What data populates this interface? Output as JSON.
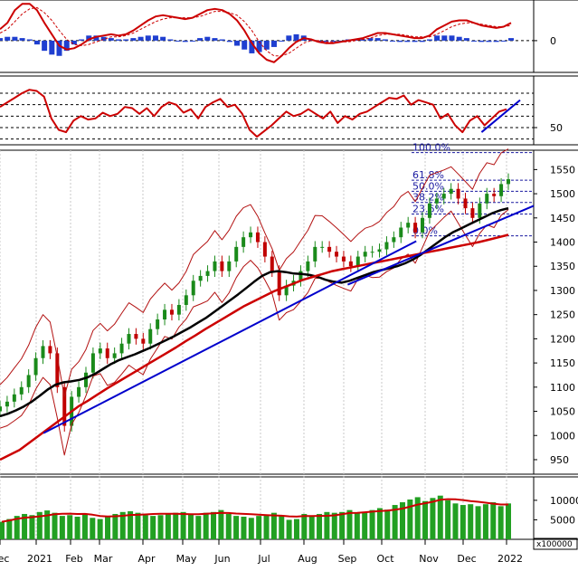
{
  "chart_data": [
    {
      "panel": "macd",
      "type": "line",
      "y_ticks": [
        0
      ],
      "y_range": [
        -25,
        32
      ],
      "grid": "dashed",
      "series": [
        {
          "color": "#cc0000",
          "values": [
            9,
            14,
            24,
            29,
            29,
            24,
            14,
            5,
            -4,
            -7,
            -6,
            -3,
            1,
            3,
            4,
            5,
            4,
            5,
            8,
            12,
            16,
            19,
            20,
            19,
            18,
            17,
            18,
            21,
            24,
            25,
            24,
            21,
            16,
            8,
            -2,
            -10,
            -15,
            -17,
            -12,
            -6,
            -1,
            2,
            1,
            -1,
            -2,
            -2,
            -1,
            0,
            1,
            2,
            4,
            6,
            6,
            5,
            4,
            3,
            2,
            2,
            4,
            9,
            12,
            15,
            16,
            16,
            14,
            12,
            11,
            10,
            11,
            14
          ]
        },
        {
          "color": "#cc0000",
          "dashed": true,
          "values": [
            6,
            9,
            15,
            21,
            25,
            26,
            22,
            16,
            8,
            1,
            -3,
            -4,
            -3,
            -1,
            1,
            3,
            3,
            4,
            6,
            9,
            12,
            15,
            17,
            18,
            18,
            18,
            18,
            19,
            21,
            23,
            23,
            22,
            20,
            15,
            8,
            -1,
            -8,
            -12,
            -12,
            -10,
            -6,
            -2,
            0,
            0,
            -1,
            -1,
            -1,
            -1,
            0,
            1,
            2,
            4,
            5,
            5,
            5,
            4,
            3,
            3,
            3,
            5,
            8,
            11,
            13,
            14,
            14,
            13,
            12,
            11,
            11,
            12
          ]
        }
      ],
      "histogram": [
        2,
        3,
        3,
        2,
        1,
        -3,
        -8,
        -11,
        -12,
        -8,
        -3,
        1,
        4,
        4,
        3,
        2,
        1,
        1,
        2,
        3,
        4,
        4,
        3,
        1,
        0,
        -1,
        0,
        2,
        3,
        2,
        1,
        -1,
        -4,
        -7,
        -10,
        -9,
        -7,
        -5,
        0,
        4,
        5,
        4,
        1,
        -1,
        -1,
        -1,
        0,
        1,
        1,
        1,
        2,
        2,
        1,
        0,
        -1,
        -1,
        -1,
        -1,
        1,
        4,
        4,
        4,
        3,
        2,
        0,
        -1,
        -1,
        -1,
        0,
        2
      ]
    },
    {
      "panel": "rsi",
      "type": "line",
      "y_ticks": [
        50
      ],
      "y_range": [
        35,
        95
      ],
      "reference_lines": [
        40,
        50,
        60,
        70,
        80
      ],
      "series": [
        {
          "color": "#cc0000",
          "values": [
            68,
            72,
            76,
            80,
            83,
            82,
            77,
            58,
            48,
            46,
            56,
            60,
            57,
            58,
            63,
            60,
            62,
            68,
            67,
            62,
            67,
            60,
            68,
            72,
            70,
            63,
            66,
            58,
            68,
            72,
            75,
            68,
            70,
            62,
            48,
            42,
            47,
            52,
            58,
            64,
            60,
            62,
            66,
            62,
            58,
            64,
            54,
            60,
            57,
            62,
            64,
            68,
            72,
            76,
            75,
            78,
            70,
            74,
            72,
            70,
            58,
            62,
            52,
            46,
            56,
            60,
            52,
            58,
            64,
            66
          ]
        },
        {
          "color": "#0000cc",
          "segment": {
            "x": [
              0.86,
              1.0
            ],
            "y": [
              46,
              74
            ]
          }
        }
      ]
    },
    {
      "panel": "price",
      "type": "candlestick",
      "y_ticks": [
        950,
        1000,
        1050,
        1100,
        1150,
        1200,
        1250,
        1300,
        1350,
        1400,
        1450,
        1500,
        1550
      ],
      "y_range": [
        920,
        1590
      ],
      "x_labels": [
        "ec",
        "2021",
        "Feb",
        "Mar",
        "Apr",
        "May",
        "Jun",
        "Jul",
        "Aug",
        "Sep",
        "Oct",
        "Nov",
        "Dec",
        "2022"
      ],
      "fib_levels": [
        {
          "label": "0.0%",
          "value": 1413
        },
        {
          "label": "23.6%",
          "value": 1458
        },
        {
          "label": "38.2%",
          "value": 1482
        },
        {
          "label": "50.0%",
          "value": 1505
        },
        {
          "label": "61.8%",
          "value": 1528
        },
        {
          "label": "100.0%",
          "value": 1585
        }
      ],
      "close": [
        1060,
        1070,
        1085,
        1100,
        1125,
        1160,
        1185,
        1170,
        1100,
        1020,
        1080,
        1100,
        1130,
        1170,
        1180,
        1160,
        1170,
        1190,
        1210,
        1200,
        1190,
        1220,
        1240,
        1260,
        1250,
        1270,
        1290,
        1320,
        1330,
        1340,
        1360,
        1340,
        1360,
        1390,
        1410,
        1420,
        1400,
        1370,
        1340,
        1290,
        1310,
        1320,
        1340,
        1360,
        1390,
        1390,
        1380,
        1370,
        1360,
        1350,
        1370,
        1380,
        1380,
        1385,
        1400,
        1410,
        1430,
        1440,
        1420,
        1450,
        1480,
        1490,
        1500,
        1510,
        1490,
        1470,
        1450,
        1480,
        1500,
        1495,
        1520,
        1530
      ],
      "overlays": [
        {
          "name": "",
          "color": "#000000",
          "values": [
            1040,
            1045,
            1052,
            1060,
            1070,
            1082,
            1095,
            1105,
            1110,
            1112,
            1115,
            1120,
            1128,
            1138,
            1148,
            1156,
            1162,
            1168,
            1175,
            1182,
            1190,
            1198,
            1206,
            1215,
            1224,
            1234,
            1244,
            1256,
            1268,
            1280,
            1292,
            1305,
            1318,
            1330,
            1338,
            1340,
            1338,
            1335,
            1334,
            1332,
            1328,
            1322,
            1318,
            1316,
            1320,
            1326,
            1332,
            1338,
            1342,
            1346,
            1350,
            1356,
            1364,
            1374,
            1386,
            1398,
            1410,
            1420,
            1428,
            1436,
            1444,
            1452,
            1460,
            1466,
            1470
          ]
        },
        {
          "name": "",
          "color": "#cc0000",
          "values": [
            950,
            960,
            970,
            985,
            1000,
            1015,
            1030,
            1045,
            1060,
            1072,
            1085,
            1098,
            1110,
            1122,
            1134,
            1146,
            1158,
            1170,
            1182,
            1195,
            1207,
            1220,
            1232,
            1244,
            1256,
            1268,
            1278,
            1288,
            1298,
            1306,
            1314,
            1322,
            1328,
            1334,
            1340,
            1344,
            1348,
            1352,
            1356,
            1360,
            1364,
            1368,
            1372,
            1376,
            1380,
            1384,
            1388,
            1392,
            1396,
            1400,
            1405,
            1410,
            1415
          ]
        },
        {
          "name": "",
          "color": "#0000cc",
          "segment": {
            "x": [
              0.09,
              0.78
            ],
            "y": [
              1005,
              1402
            ]
          }
        },
        {
          "name": "",
          "color": "#0000cc",
          "segment": {
            "x": [
              0.66,
              1.0
            ],
            "y": [
              1312,
              1475
            ]
          }
        }
      ]
    },
    {
      "panel": "volume",
      "type": "bar",
      "y_ticks": [
        5000,
        10000
      ],
      "y_range": [
        0,
        16000
      ],
      "unit": "x100000",
      "values": [
        4500,
        5200,
        6000,
        6500,
        6200,
        7000,
        7400,
        6800,
        6000,
        6200,
        5800,
        6400,
        5500,
        5200,
        5800,
        6500,
        7000,
        7200,
        6800,
        6200,
        6000,
        6200,
        6500,
        6800,
        7000,
        6500,
        6000,
        6800,
        7000,
        7500,
        6500,
        6000,
        5800,
        5500,
        6000,
        6200,
        6800,
        6000,
        5000,
        5200,
        6500,
        6000,
        6500,
        7000,
        6800,
        7000,
        7500,
        6800,
        7000,
        7500,
        8000,
        7600,
        8800,
        9500,
        10200,
        10800,
        9800,
        10600,
        11200,
        10000,
        9200,
        8800,
        9000,
        8500,
        9000,
        9500,
        8500,
        9200
      ]
    }
  ]
}
